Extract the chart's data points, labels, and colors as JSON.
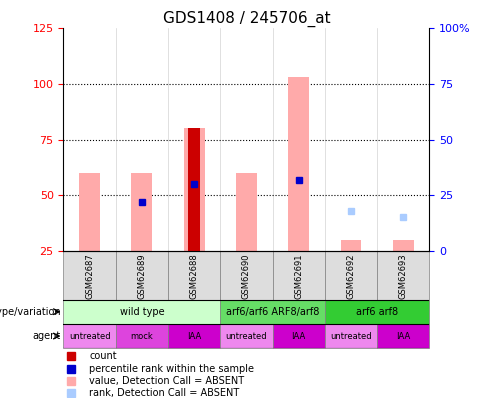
{
  "title": "GDS1408 / 245706_at",
  "samples": [
    "GSM62687",
    "GSM62689",
    "GSM62688",
    "GSM62690",
    "GSM62691",
    "GSM62692",
    "GSM62693"
  ],
  "ylim_left": [
    25,
    125
  ],
  "ylim_right": [
    0,
    100
  ],
  "yticks_left": [
    25,
    50,
    75,
    100,
    125
  ],
  "yticks_right": [
    0,
    25,
    50,
    75,
    100
  ],
  "ytick_labels_right": [
    "0",
    "25",
    "50",
    "75",
    "100%"
  ],
  "dotted_lines": [
    50,
    75,
    100
  ],
  "pink_bars": {
    "bottoms": [
      25,
      25,
      25,
      25,
      25,
      25,
      25
    ],
    "tops": [
      60,
      60,
      80,
      60,
      103,
      30,
      30
    ]
  },
  "red_bars": {
    "x": [
      2
    ],
    "bottoms": [
      25
    ],
    "tops": [
      80
    ]
  },
  "blue_squares": {
    "x": [
      1,
      2,
      4
    ],
    "y": [
      47,
      55,
      57
    ]
  },
  "light_blue_squares": {
    "x": [
      5,
      6
    ],
    "y": [
      43,
      40
    ]
  },
  "genotype_groups": [
    {
      "label": "wild type",
      "cols": [
        0,
        1,
        2
      ],
      "color": "#ccffcc"
    },
    {
      "label": "arf6/arf6 ARF8/arf8",
      "cols": [
        3,
        4
      ],
      "color": "#66dd66"
    },
    {
      "label": "arf6 arf8",
      "cols": [
        5,
        6
      ],
      "color": "#33cc33"
    }
  ],
  "agent_groups": [
    {
      "label": "untreated",
      "col": 0,
      "color": "#ee88ee"
    },
    {
      "label": "mock",
      "col": 1,
      "color": "#dd44dd"
    },
    {
      "label": "IAA",
      "col": 2,
      "color": "#cc00cc"
    },
    {
      "label": "untreated",
      "col": 3,
      "color": "#ee88ee"
    },
    {
      "label": "IAA",
      "col": 4,
      "color": "#cc00cc"
    },
    {
      "label": "untreated",
      "col": 5,
      "color": "#ee88ee"
    },
    {
      "label": "IAA",
      "col": 6,
      "color": "#cc00cc"
    }
  ],
  "legend_items": [
    {
      "label": "count",
      "color": "#cc0000",
      "marker": "s"
    },
    {
      "label": "percentile rank within the sample",
      "color": "#0000cc",
      "marker": "s"
    },
    {
      "label": "value, Detection Call = ABSENT",
      "color": "#ffaaaa",
      "marker": "s"
    },
    {
      "label": "rank, Detection Call = ABSENT",
      "color": "#aaccff",
      "marker": "s"
    }
  ],
  "bar_width": 0.4,
  "pink_color": "#ffaaaa",
  "red_color": "#cc0000",
  "blue_color": "#0000cc",
  "light_blue_color": "#aaccff",
  "grid_color": "#000000"
}
